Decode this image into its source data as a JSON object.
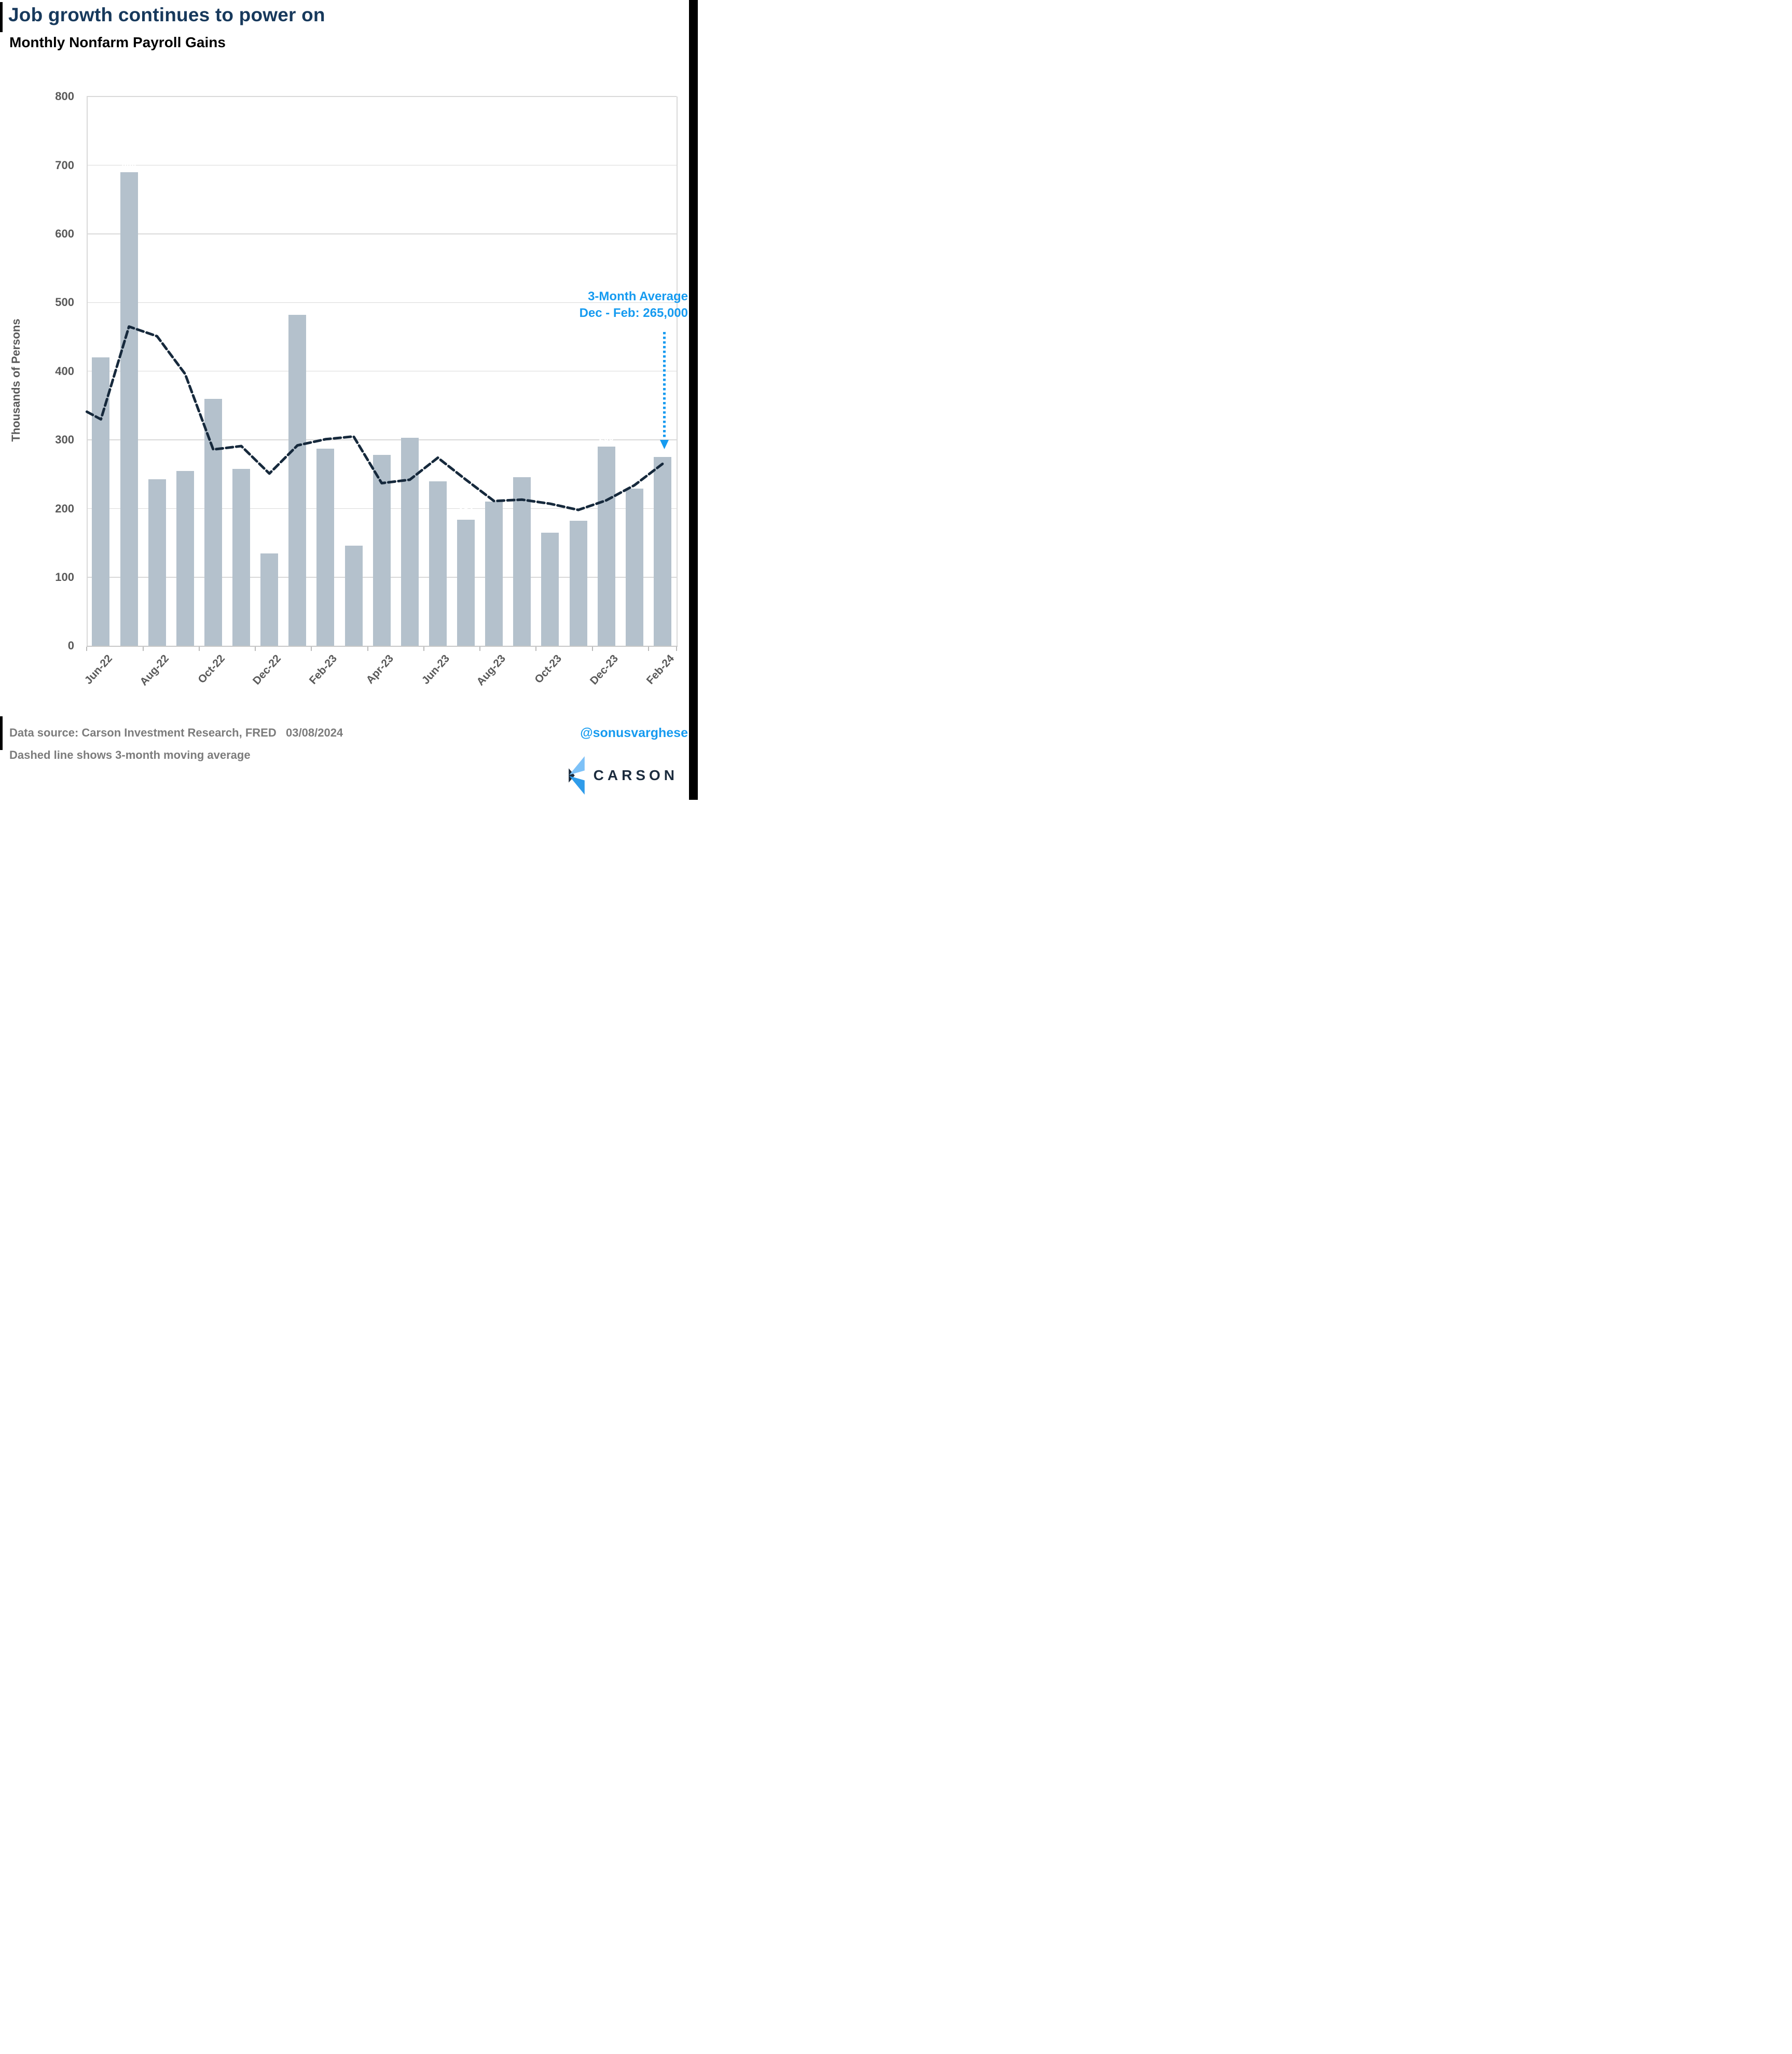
{
  "header": {
    "title": "Job growth continues to power on",
    "subtitle": "Monthly Nonfarm Payroll Gains"
  },
  "chart_data": {
    "type": "bar",
    "title": "Monthly Nonfarm Payroll Gains",
    "y_axis_title": "Thousands of Persons",
    "ylim": [
      0,
      800
    ],
    "yticks": [
      0,
      100,
      200,
      300,
      400,
      500,
      600,
      700,
      800
    ],
    "grid": "horizontal",
    "legend": "none",
    "categories": [
      "Jun-22",
      "Jul-22",
      "Aug-22",
      "Sep-22",
      "Oct-22",
      "Nov-22",
      "Dec-22",
      "Jan-23",
      "Feb-23",
      "Mar-23",
      "Apr-23",
      "May-23",
      "Jun-23",
      "Jul-23",
      "Aug-23",
      "Sep-23",
      "Oct-23",
      "Nov-23",
      "Dec-23",
      "Jan-24",
      "Feb-24"
    ],
    "x_tick_labels": [
      "Jun-22",
      "Aug-22",
      "Oct-22",
      "Dec-22",
      "Feb-23",
      "Apr-23",
      "Jun-23",
      "Aug-23",
      "Oct-23",
      "Dec-23",
      "Feb-24"
    ],
    "series": [
      {
        "name": "Monthly payroll gains (thousands)",
        "type": "bar",
        "values": [
          420,
          690,
          243,
          255,
          360,
          258,
          135,
          482,
          287,
          146,
          278,
          303,
          240,
          184,
          210,
          246,
          165,
          182,
          290,
          229,
          275
        ]
      },
      {
        "name": "3-month moving average",
        "type": "line",
        "dashed": true,
        "edge_start_value": 341,
        "values": [
          330,
          465,
          451,
          396,
          286,
          291,
          251,
          292,
          301,
          305,
          237,
          242,
          274,
          242,
          211,
          213,
          207,
          198,
          212,
          234,
          265
        ]
      }
    ],
    "annotation": {
      "line1": "3-Month Average",
      "line2": "Dec - Feb: 265,000"
    },
    "colors": {
      "bar": "#b4c1cc",
      "ma_line": "#16293c",
      "annotation": "#169bf0",
      "grid": "#d9d9d9",
      "axis_text": "#595959",
      "title": "#17395c",
      "logo_navy": "#1c2c3e",
      "logo_light_blue": "#7dc1f7",
      "logo_blue": "#2f9cea"
    }
  },
  "footer": {
    "source_line": "Data source: Carson Investment Research, FRED   03/08/2024",
    "note_line": "Dashed line shows 3-month moving average",
    "handle": "@sonusvarghese",
    "logo_text": "CARSON"
  }
}
